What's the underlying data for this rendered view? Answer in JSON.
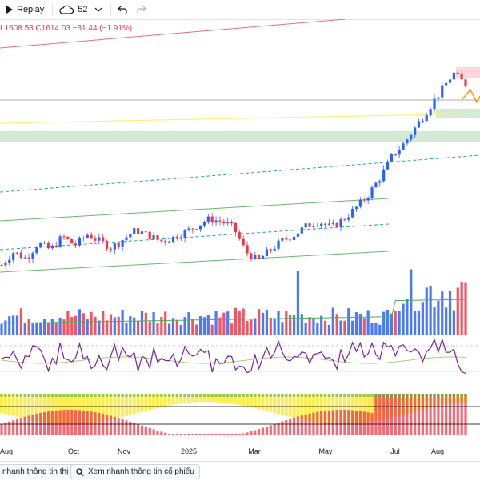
{
  "toolbar": {
    "replay_label": "Replay",
    "alerts_count": "52",
    "undo_icon": "undo-icon",
    "redo_icon": "redo-icon"
  },
  "ohlc_text": "L1608.53  C1614.03  −31.44 (−1.91%)",
  "bottom": {
    "market_btn": "nhanh thông tin thị trường",
    "stock_btn": "Xem nhanh thông tin cổ phiếu"
  },
  "colors": {
    "up": "#2962ff",
    "down": "#f23645",
    "rsi": "#7b1fa2",
    "ma": "#4caf50",
    "zone_green": "#c8e6c9",
    "zone_red": "#ffcdd2",
    "yellow": "#ffeb3b"
  },
  "chart_data": {
    "type": "line",
    "x_ticks": [
      "Aug",
      "Oct",
      "Nov",
      "2025",
      "Mar",
      "May",
      "Jul",
      "Aug"
    ],
    "series": [
      {
        "values": [
          1200,
          1230,
          1215,
          1250,
          1235,
          1265,
          1245,
          1270,
          1255,
          1240,
          1260,
          1280,
          1268,
          1255,
          1262,
          1275,
          1290,
          1305,
          1300,
          1285,
          1230,
          1210,
          1235,
          1255,
          1270,
          1290,
          1300,
          1285,
          1305,
          1330,
          1360,
          1400,
          1450,
          1480,
          1520,
          1560,
          1600,
          1640,
          1614
        ]
      }
    ]
  }
}
